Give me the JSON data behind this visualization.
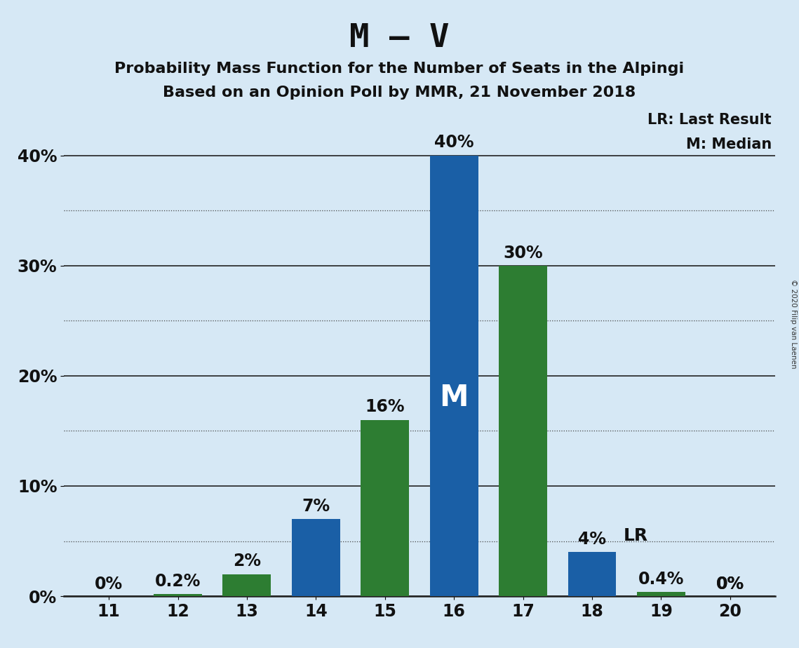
{
  "title_main": "M – V",
  "subtitle1": "Probability Mass Function for the Number of Seats in the Alpingi",
  "subtitle2": "Based on an Opinion Poll by MMR, 21 November 2018",
  "copyright": "© 2020 Filip van Laenen",
  "seats": [
    11,
    12,
    13,
    14,
    15,
    16,
    17,
    18,
    19,
    20
  ],
  "blue_values": [
    0.0,
    0.0,
    0.0,
    7.0,
    0.0,
    40.0,
    0.0,
    4.0,
    0.4,
    0.0
  ],
  "green_values": [
    0.0,
    0.2,
    2.0,
    0.0,
    16.0,
    0.0,
    30.0,
    0.0,
    0.4,
    0.0
  ],
  "blue_labels": [
    "0%",
    "",
    "",
    "7%",
    "",
    "40%",
    "",
    "4%",
    "",
    "0%"
  ],
  "green_labels": [
    "",
    "0.2%",
    "2%",
    "",
    "16%",
    "",
    "30%",
    "",
    "0.4%",
    "0%"
  ],
  "blue_color": "#1A5FA6",
  "green_color": "#2D7D32",
  "background_color": "#D6E8F5",
  "median_seat": 16,
  "lr_seat": 18,
  "legend_lr": "LR: Last Result",
  "legend_m": "M: Median",
  "lr_label": "LR",
  "m_label": "M",
  "ylim": [
    0,
    45
  ],
  "yticks": [
    0,
    10,
    20,
    30,
    40
  ],
  "ytick_labels": [
    "0%",
    "10%",
    "20%",
    "30%",
    "40%"
  ],
  "bar_width": 0.7,
  "title_fontsize": 34,
  "subtitle_fontsize": 16,
  "tick_fontsize": 17,
  "annotation_fontsize": 17,
  "m_fontsize": 30,
  "lr_fontsize": 18
}
